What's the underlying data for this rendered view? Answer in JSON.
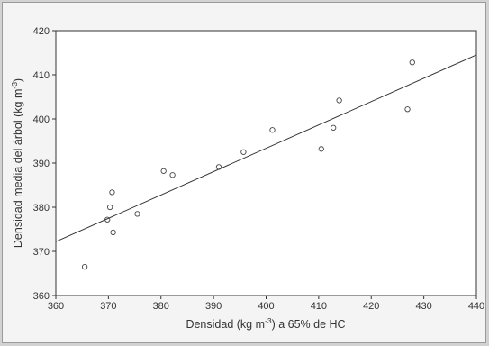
{
  "chart_data": {
    "type": "scatter",
    "title": "",
    "xlabel_parts": [
      "Densidad (kg m",
      "-3",
      ") a 65% de HC"
    ],
    "ylabel_parts": [
      "Densidad media del árbol (kg m",
      "-3",
      ")"
    ],
    "xlim": [
      360,
      440
    ],
    "ylim": [
      360,
      420
    ],
    "xticks": [
      360,
      370,
      380,
      390,
      400,
      410,
      420,
      430,
      440
    ],
    "yticks": [
      360,
      370,
      380,
      390,
      400,
      410,
      420
    ],
    "grid": false,
    "marker": "open-circle",
    "points": [
      {
        "x": 365.5,
        "y": 366.5
      },
      {
        "x": 369.8,
        "y": 377.2
      },
      {
        "x": 370.3,
        "y": 380.0
      },
      {
        "x": 370.7,
        "y": 383.4
      },
      {
        "x": 370.9,
        "y": 374.3
      },
      {
        "x": 375.5,
        "y": 378.5
      },
      {
        "x": 380.5,
        "y": 388.2
      },
      {
        "x": 382.2,
        "y": 387.3
      },
      {
        "x": 391.0,
        "y": 389.1
      },
      {
        "x": 395.7,
        "y": 392.5
      },
      {
        "x": 401.2,
        "y": 397.5
      },
      {
        "x": 410.5,
        "y": 393.2
      },
      {
        "x": 412.8,
        "y": 398.0
      },
      {
        "x": 413.9,
        "y": 404.2
      },
      {
        "x": 426.9,
        "y": 402.2
      },
      {
        "x": 427.8,
        "y": 412.8
      }
    ],
    "fit_line": {
      "x": [
        360,
        440
      ],
      "y": [
        372.2,
        414.5
      ]
    },
    "colors": {
      "axis": "#333333",
      "marker": "#444444",
      "line": "#333333",
      "plot_bg": "#ffffff"
    }
  }
}
